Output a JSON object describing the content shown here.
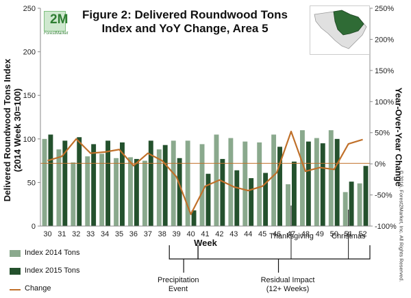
{
  "header": {
    "title_line1": "Figure 2: Delivered Roundwood Tons",
    "title_line2": "Index and YoY Change, Area 5",
    "logo_text": "2M",
    "logo_subtext": "ForestMarket"
  },
  "axes": {
    "y_left_label_line1": "Delivered Roundwood Tons Index",
    "y_left_label_line2": "(2014 Week 30=100)",
    "y_right_label": "Year-Over-Year Change",
    "x_label": "Week",
    "copyright": "© 2016, Forest2Market, Inc. All Rights Reserved."
  },
  "legend": {
    "item1": "Index 2014 Tons",
    "item2": "Index 2015 Tons",
    "item3": "Change"
  },
  "annotations": {
    "thanksgiving": "Thanksgiving",
    "christmas": "Christmas",
    "precip_line1": "Precipitation",
    "precip_line2": "Event",
    "residual_line1": "Residual Impact",
    "residual_line2": "(12+ Weeks)"
  },
  "colors": {
    "series2014": "#8aa98d",
    "series2015": "#24512d",
    "change": "#c0702a",
    "axis": "#888888"
  },
  "chart_data": {
    "type": "bar",
    "title": "Figure 2: Delivered Roundwood Tons Index and YoY Change, Area 5",
    "xlabel": "Week",
    "ylabel": "Delivered Roundwood Tons Index (2014 Week 30=100)",
    "y2label": "Year-Over-Year Change",
    "categories": [
      "30",
      "31",
      "32",
      "33",
      "34",
      "35",
      "36",
      "37",
      "38",
      "39",
      "40",
      "41",
      "42",
      "43",
      "44",
      "45",
      "46",
      "47",
      "48",
      "49",
      "50",
      "51",
      "52"
    ],
    "ylim": [
      0,
      250
    ],
    "yticks": [
      0,
      50,
      100,
      150,
      200,
      250
    ],
    "y2lim": [
      -100,
      250
    ],
    "y2ticks": [
      -100,
      -50,
      0,
      50,
      100,
      150,
      200,
      250
    ],
    "y2tick_labels": [
      "-100%",
      "-50%",
      "0%",
      "50%",
      "100%",
      "150%",
      "200%",
      "250%"
    ],
    "series": [
      {
        "name": "Index 2014 Tons",
        "axis": "left",
        "kind": "bar",
        "values": [
          100,
          88,
          73,
          80,
          83,
          78,
          79,
          75,
          88,
          98,
          98,
          94,
          105,
          101,
          97,
          96,
          105,
          48,
          110,
          101,
          110,
          39,
          49
        ]
      },
      {
        "name": "Index 2015 Tons",
        "axis": "left",
        "kind": "bar",
        "values": [
          105,
          98,
          102,
          94,
          98,
          96,
          77,
          98,
          93,
          78,
          18,
          60,
          77,
          64,
          55,
          61,
          91,
          74,
          97,
          95,
          100,
          51,
          69
        ]
      },
      {
        "name": "Change",
        "axis": "right",
        "kind": "line",
        "values": [
          5,
          12,
          40,
          17,
          19,
          23,
          -3,
          17,
          5,
          -21,
          -81,
          -36,
          -26,
          -37,
          -43,
          -36,
          -14,
          52,
          -12,
          -6,
          -9,
          32,
          39
        ]
      }
    ],
    "reference_line_left": 72
  }
}
